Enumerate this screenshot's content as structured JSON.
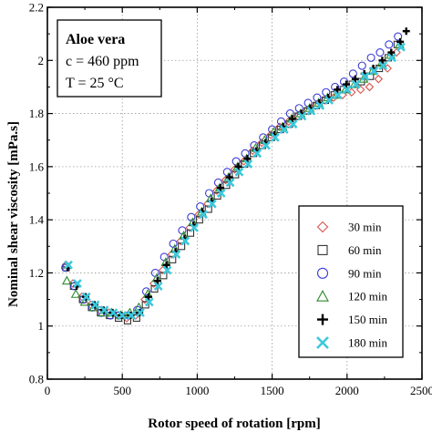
{
  "chart_data": {
    "type": "scatter",
    "xlabel": "Rotor speed of rotation [rpm]",
    "ylabel": "Nominal shear viscosity [mPa.s]",
    "xlim": [
      0,
      2500
    ],
    "ylim": [
      0.8,
      2.2
    ],
    "xticks": [
      "0",
      "500",
      "1000",
      "1500",
      "2000",
      "2500"
    ],
    "yticks": [
      "0.8",
      "1",
      "1.2",
      "1.4",
      "1.6",
      "1.8",
      "2",
      "2.2"
    ],
    "grid": true,
    "legend_position": "bottom-right",
    "annotation": {
      "line1": "Aloe vera",
      "line2": "c = 460 ppm",
      "line3": "T = 25 °C"
    },
    "series": [
      {
        "name": "30 min",
        "marker": "diamond",
        "color": "#d9534f",
        "x": [
          125,
          170,
          230,
          290,
          350,
          410,
          470,
          530,
          590,
          650,
          710,
          770,
          830,
          890,
          950,
          1010,
          1070,
          1130,
          1190,
          1250,
          1310,
          1370,
          1430,
          1490,
          1550,
          1610,
          1670,
          1730,
          1790,
          1850,
          1910,
          1970,
          2030,
          2090,
          2150,
          2210,
          2270,
          2330
        ],
        "y": [
          1.23,
          1.16,
          1.11,
          1.08,
          1.06,
          1.05,
          1.04,
          1.03,
          1.04,
          1.1,
          1.16,
          1.21,
          1.27,
          1.32,
          1.37,
          1.42,
          1.46,
          1.51,
          1.55,
          1.59,
          1.62,
          1.66,
          1.69,
          1.72,
          1.75,
          1.77,
          1.79,
          1.81,
          1.83,
          1.85,
          1.86,
          1.87,
          1.88,
          1.89,
          1.9,
          1.93,
          1.97,
          2.03
        ]
      },
      {
        "name": "60 min",
        "marker": "square",
        "color": "#333333",
        "x": [
          125,
          175,
          235,
          295,
          355,
          415,
          475,
          535,
          595,
          655,
          715,
          775,
          835,
          895,
          955,
          1015,
          1075,
          1135,
          1195,
          1255,
          1315,
          1375,
          1435,
          1495,
          1555,
          1615,
          1675,
          1735,
          1795,
          1855,
          1915,
          1975,
          2035,
          2095,
          2155,
          2215,
          2275,
          2335
        ],
        "y": [
          1.22,
          1.15,
          1.1,
          1.07,
          1.05,
          1.04,
          1.03,
          1.02,
          1.03,
          1.08,
          1.14,
          1.19,
          1.25,
          1.3,
          1.35,
          1.4,
          1.44,
          1.49,
          1.53,
          1.57,
          1.61,
          1.65,
          1.68,
          1.71,
          1.74,
          1.76,
          1.79,
          1.81,
          1.83,
          1.85,
          1.87,
          1.89,
          1.91,
          1.92,
          1.94,
          1.97,
          2.01,
          2.06
        ]
      },
      {
        "name": "90 min",
        "marker": "circle",
        "color": "#3b3bd6",
        "x": [
          120,
          180,
          240,
          300,
          360,
          420,
          480,
          540,
          600,
          660,
          720,
          780,
          840,
          900,
          960,
          1020,
          1080,
          1140,
          1200,
          1260,
          1320,
          1380,
          1440,
          1500,
          1560,
          1620,
          1680,
          1740,
          1800,
          1860,
          1920,
          1980,
          2040,
          2100,
          2160,
          2220,
          2280,
          2340
        ],
        "y": [
          1.22,
          1.15,
          1.1,
          1.07,
          1.05,
          1.04,
          1.04,
          1.04,
          1.06,
          1.13,
          1.2,
          1.26,
          1.31,
          1.36,
          1.41,
          1.45,
          1.5,
          1.54,
          1.58,
          1.62,
          1.65,
          1.68,
          1.71,
          1.74,
          1.77,
          1.8,
          1.82,
          1.84,
          1.86,
          1.88,
          1.9,
          1.92,
          1.95,
          1.98,
          2.01,
          2.03,
          2.06,
          2.09
        ]
      },
      {
        "name": "120 min",
        "marker": "triangle",
        "color": "#2e8b2e",
        "x": [
          130,
          190,
          250,
          310,
          370,
          430,
          490,
          550,
          610,
          670,
          730,
          790,
          850,
          910,
          970,
          1030,
          1090,
          1150,
          1210,
          1270,
          1330,
          1390,
          1450,
          1510,
          1570,
          1630,
          1690,
          1750,
          1810,
          1870,
          1930,
          1990,
          2050,
          2110,
          2170,
          2230,
          2290,
          2350
        ],
        "y": [
          1.17,
          1.12,
          1.09,
          1.07,
          1.05,
          1.05,
          1.04,
          1.05,
          1.07,
          1.12,
          1.18,
          1.24,
          1.29,
          1.34,
          1.39,
          1.43,
          1.48,
          1.52,
          1.56,
          1.6,
          1.63,
          1.67,
          1.7,
          1.73,
          1.75,
          1.78,
          1.8,
          1.82,
          1.84,
          1.86,
          1.87,
          1.89,
          1.91,
          1.93,
          1.96,
          1.99,
          2.02,
          2.06
        ]
      },
      {
        "name": "150 min",
        "marker": "plus",
        "color": "#000000",
        "x": [
          135,
          195,
          255,
          315,
          375,
          435,
          495,
          555,
          615,
          675,
          735,
          795,
          855,
          915,
          975,
          1035,
          1095,
          1155,
          1215,
          1275,
          1335,
          1395,
          1455,
          1515,
          1575,
          1635,
          1695,
          1755,
          1815,
          1875,
          1935,
          1995,
          2055,
          2115,
          2175,
          2235,
          2295,
          2355,
          2395
        ],
        "y": [
          1.22,
          1.15,
          1.11,
          1.08,
          1.06,
          1.05,
          1.04,
          1.04,
          1.05,
          1.11,
          1.17,
          1.23,
          1.28,
          1.33,
          1.38,
          1.43,
          1.47,
          1.52,
          1.56,
          1.6,
          1.63,
          1.66,
          1.69,
          1.72,
          1.75,
          1.78,
          1.8,
          1.82,
          1.84,
          1.86,
          1.89,
          1.91,
          1.93,
          1.95,
          1.97,
          2.0,
          2.03,
          2.07,
          2.11
        ]
      },
      {
        "name": "180 min",
        "marker": "cross",
        "color": "#3cc8dc",
        "x": [
          140,
          200,
          260,
          320,
          380,
          440,
          500,
          560,
          620,
          680,
          740,
          800,
          860,
          920,
          980,
          1040,
          1100,
          1160,
          1220,
          1280,
          1340,
          1400,
          1460,
          1520,
          1580,
          1640,
          1700,
          1760,
          1820,
          1880,
          1940,
          2000,
          2060,
          2120,
          2180,
          2240,
          2300,
          2360
        ],
        "y": [
          1.23,
          1.16,
          1.11,
          1.08,
          1.06,
          1.05,
          1.04,
          1.04,
          1.05,
          1.09,
          1.15,
          1.21,
          1.27,
          1.32,
          1.37,
          1.42,
          1.46,
          1.5,
          1.54,
          1.58,
          1.61,
          1.65,
          1.68,
          1.71,
          1.74,
          1.76,
          1.79,
          1.81,
          1.83,
          1.85,
          1.87,
          1.89,
          1.91,
          1.94,
          1.96,
          1.98,
          2.01,
          2.05
        ]
      }
    ]
  }
}
